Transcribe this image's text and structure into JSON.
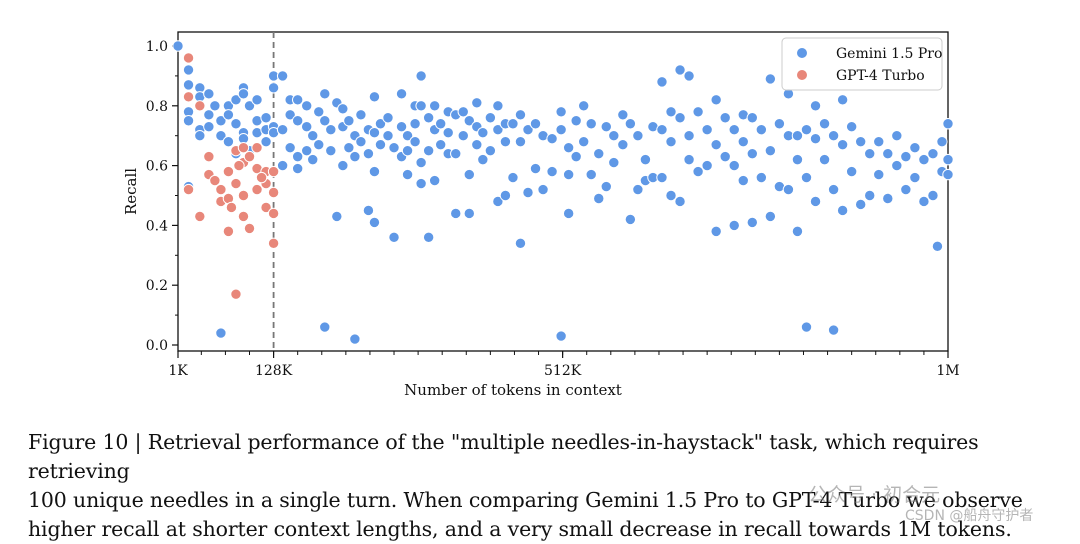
{
  "chart_data": {
    "type": "scatter",
    "title": "",
    "xlabel": "Number of tokens in context",
    "ylabel": "Recall",
    "xlim": [
      1,
      1024
    ],
    "ylim": [
      0,
      1.0
    ],
    "x_units": "K tokens",
    "x_ticks": [
      {
        "value": 1,
        "label": "1K"
      },
      {
        "value": 128,
        "label": "128K"
      },
      {
        "value": 512,
        "label": "512K"
      },
      {
        "value": 1024,
        "label": "1M"
      }
    ],
    "y_ticks": [
      {
        "value": 0.0,
        "label": "0.0"
      },
      {
        "value": 0.2,
        "label": "0.2"
      },
      {
        "value": 0.4,
        "label": "0.4"
      },
      {
        "value": 0.6,
        "label": "0.6"
      },
      {
        "value": 0.8,
        "label": "0.8"
      },
      {
        "value": 1.0,
        "label": "1.0"
      }
    ],
    "vline_x": 128,
    "legend_position": "top-right",
    "grid": false,
    "series": [
      {
        "name": "Gemini 1.5 Pro",
        "color": "#5f98e6",
        "points": [
          [
            1,
            1.0
          ],
          [
            15,
            0.92
          ],
          [
            15,
            0.87
          ],
          [
            15,
            0.78
          ],
          [
            15,
            0.75
          ],
          [
            15,
            0.53
          ],
          [
            30,
            0.86
          ],
          [
            30,
            0.83
          ],
          [
            30,
            0.72
          ],
          [
            30,
            0.7
          ],
          [
            42,
            0.84
          ],
          [
            42,
            0.77
          ],
          [
            42,
            0.73
          ],
          [
            50,
            0.8
          ],
          [
            58,
            0.75
          ],
          [
            58,
            0.7
          ],
          [
            58,
            0.04
          ],
          [
            68,
            0.8
          ],
          [
            68,
            0.77
          ],
          [
            68,
            0.68
          ],
          [
            78,
            0.82
          ],
          [
            78,
            0.74
          ],
          [
            78,
            0.64
          ],
          [
            88,
            0.86
          ],
          [
            88,
            0.84
          ],
          [
            88,
            0.71
          ],
          [
            88,
            0.69
          ],
          [
            96,
            0.8
          ],
          [
            96,
            0.65
          ],
          [
            106,
            0.82
          ],
          [
            106,
            0.75
          ],
          [
            106,
            0.71
          ],
          [
            118,
            0.76
          ],
          [
            118,
            0.72
          ],
          [
            118,
            0.68
          ],
          [
            128,
            0.9
          ],
          [
            128,
            0.86
          ],
          [
            128,
            0.73
          ],
          [
            128,
            0.71
          ],
          [
            140,
            0.9
          ],
          [
            140,
            0.72
          ],
          [
            140,
            0.6
          ],
          [
            150,
            0.82
          ],
          [
            150,
            0.77
          ],
          [
            150,
            0.66
          ],
          [
            160,
            0.82
          ],
          [
            160,
            0.75
          ],
          [
            160,
            0.63
          ],
          [
            160,
            0.59
          ],
          [
            172,
            0.8
          ],
          [
            172,
            0.73
          ],
          [
            172,
            0.65
          ],
          [
            180,
            0.7
          ],
          [
            180,
            0.62
          ],
          [
            188,
            0.78
          ],
          [
            188,
            0.67
          ],
          [
            196,
            0.84
          ],
          [
            196,
            0.75
          ],
          [
            196,
            0.06
          ],
          [
            204,
            0.72
          ],
          [
            204,
            0.65
          ],
          [
            212,
            0.81
          ],
          [
            212,
            0.43
          ],
          [
            220,
            0.79
          ],
          [
            220,
            0.73
          ],
          [
            220,
            0.6
          ],
          [
            228,
            0.75
          ],
          [
            228,
            0.66
          ],
          [
            236,
            0.7
          ],
          [
            236,
            0.63
          ],
          [
            236,
            0.02
          ],
          [
            244,
            0.77
          ],
          [
            244,
            0.68
          ],
          [
            254,
            0.72
          ],
          [
            254,
            0.64
          ],
          [
            254,
            0.45
          ],
          [
            262,
            0.83
          ],
          [
            262,
            0.71
          ],
          [
            262,
            0.58
          ],
          [
            262,
            0.41
          ],
          [
            270,
            0.74
          ],
          [
            270,
            0.67
          ],
          [
            280,
            0.76
          ],
          [
            280,
            0.7
          ],
          [
            288,
            0.66
          ],
          [
            288,
            0.36
          ],
          [
            298,
            0.84
          ],
          [
            298,
            0.73
          ],
          [
            298,
            0.63
          ],
          [
            306,
            0.7
          ],
          [
            306,
            0.65
          ],
          [
            306,
            0.57
          ],
          [
            316,
            0.8
          ],
          [
            316,
            0.74
          ],
          [
            316,
            0.68
          ],
          [
            324,
            0.9
          ],
          [
            324,
            0.8
          ],
          [
            324,
            0.61
          ],
          [
            324,
            0.54
          ],
          [
            334,
            0.76
          ],
          [
            334,
            0.65
          ],
          [
            334,
            0.36
          ],
          [
            342,
            0.8
          ],
          [
            342,
            0.72
          ],
          [
            342,
            0.55
          ],
          [
            350,
            0.74
          ],
          [
            350,
            0.67
          ],
          [
            360,
            0.78
          ],
          [
            360,
            0.71
          ],
          [
            360,
            0.64
          ],
          [
            370,
            0.77
          ],
          [
            370,
            0.64
          ],
          [
            370,
            0.44
          ],
          [
            380,
            0.78
          ],
          [
            380,
            0.7
          ],
          [
            388,
            0.75
          ],
          [
            388,
            0.57
          ],
          [
            388,
            0.44
          ],
          [
            398,
            0.81
          ],
          [
            398,
            0.73
          ],
          [
            398,
            0.67
          ],
          [
            406,
            0.71
          ],
          [
            406,
            0.62
          ],
          [
            416,
            0.76
          ],
          [
            416,
            0.65
          ],
          [
            426,
            0.8
          ],
          [
            426,
            0.72
          ],
          [
            426,
            0.48
          ],
          [
            436,
            0.74
          ],
          [
            436,
            0.68
          ],
          [
            436,
            0.5
          ],
          [
            446,
            0.74
          ],
          [
            446,
            0.56
          ],
          [
            456,
            0.77
          ],
          [
            456,
            0.68
          ],
          [
            456,
            0.34
          ],
          [
            466,
            0.72
          ],
          [
            466,
            0.51
          ],
          [
            476,
            0.74
          ],
          [
            476,
            0.59
          ],
          [
            486,
            0.7
          ],
          [
            486,
            0.52
          ],
          [
            498,
            0.69
          ],
          [
            498,
            0.58
          ],
          [
            510,
            0.78
          ],
          [
            510,
            0.72
          ],
          [
            510,
            0.03
          ],
          [
            520,
            0.66
          ],
          [
            520,
            0.57
          ],
          [
            520,
            0.44
          ],
          [
            530,
            0.75
          ],
          [
            530,
            0.63
          ],
          [
            540,
            0.8
          ],
          [
            540,
            0.68
          ],
          [
            550,
            0.74
          ],
          [
            550,
            0.57
          ],
          [
            560,
            0.64
          ],
          [
            560,
            0.49
          ],
          [
            570,
            0.73
          ],
          [
            570,
            0.53
          ],
          [
            580,
            0.7
          ],
          [
            580,
            0.61
          ],
          [
            592,
            0.77
          ],
          [
            592,
            0.67
          ],
          [
            602,
            0.74
          ],
          [
            602,
            0.42
          ],
          [
            612,
            0.7
          ],
          [
            612,
            0.52
          ],
          [
            622,
            0.62
          ],
          [
            622,
            0.55
          ],
          [
            632,
            0.73
          ],
          [
            632,
            0.56
          ],
          [
            644,
            0.88
          ],
          [
            644,
            0.72
          ],
          [
            644,
            0.56
          ],
          [
            656,
            0.78
          ],
          [
            656,
            0.68
          ],
          [
            656,
            0.5
          ],
          [
            668,
            0.92
          ],
          [
            668,
            0.76
          ],
          [
            668,
            0.48
          ],
          [
            680,
            0.9
          ],
          [
            680,
            0.7
          ],
          [
            680,
            0.62
          ],
          [
            692,
            0.78
          ],
          [
            692,
            0.58
          ],
          [
            704,
            0.72
          ],
          [
            704,
            0.6
          ],
          [
            716,
            0.82
          ],
          [
            716,
            0.67
          ],
          [
            716,
            0.38
          ],
          [
            728,
            0.76
          ],
          [
            728,
            0.63
          ],
          [
            740,
            0.72
          ],
          [
            740,
            0.6
          ],
          [
            740,
            0.4
          ],
          [
            752,
            0.77
          ],
          [
            752,
            0.68
          ],
          [
            752,
            0.55
          ],
          [
            764,
            0.76
          ],
          [
            764,
            0.64
          ],
          [
            764,
            0.41
          ],
          [
            776,
            0.72
          ],
          [
            776,
            0.56
          ],
          [
            788,
            0.89
          ],
          [
            788,
            0.65
          ],
          [
            788,
            0.43
          ],
          [
            800,
            0.74
          ],
          [
            800,
            0.53
          ],
          [
            812,
            0.84
          ],
          [
            812,
            0.7
          ],
          [
            812,
            0.52
          ],
          [
            824,
            0.7
          ],
          [
            824,
            0.62
          ],
          [
            824,
            0.38
          ],
          [
            836,
            0.72
          ],
          [
            836,
            0.56
          ],
          [
            836,
            0.06
          ],
          [
            848,
            0.8
          ],
          [
            848,
            0.69
          ],
          [
            848,
            0.48
          ],
          [
            860,
            0.74
          ],
          [
            860,
            0.62
          ],
          [
            872,
            0.7
          ],
          [
            872,
            0.52
          ],
          [
            872,
            0.05
          ],
          [
            884,
            0.82
          ],
          [
            884,
            0.67
          ],
          [
            884,
            0.45
          ],
          [
            896,
            0.73
          ],
          [
            896,
            0.58
          ],
          [
            908,
            0.68
          ],
          [
            908,
            0.47
          ],
          [
            920,
            0.64
          ],
          [
            920,
            0.5
          ],
          [
            932,
            0.68
          ],
          [
            932,
            0.57
          ],
          [
            944,
            0.64
          ],
          [
            944,
            0.49
          ],
          [
            956,
            0.7
          ],
          [
            956,
            0.6
          ],
          [
            968,
            0.63
          ],
          [
            968,
            0.52
          ],
          [
            980,
            0.66
          ],
          [
            980,
            0.56
          ],
          [
            992,
            0.62
          ],
          [
            992,
            0.48
          ],
          [
            1004,
            0.64
          ],
          [
            1004,
            0.5
          ],
          [
            1010,
            0.33
          ],
          [
            1016,
            0.68
          ],
          [
            1016,
            0.58
          ],
          [
            1024,
            0.74
          ],
          [
            1024,
            0.62
          ],
          [
            1024,
            0.57
          ]
        ]
      },
      {
        "name": "GPT-4 Turbo",
        "color": "#e8877a",
        "points": [
          [
            15,
            0.96
          ],
          [
            15,
            0.83
          ],
          [
            15,
            0.52
          ],
          [
            30,
            0.8
          ],
          [
            30,
            0.43
          ],
          [
            42,
            0.63
          ],
          [
            42,
            0.57
          ],
          [
            50,
            0.55
          ],
          [
            58,
            0.52
          ],
          [
            58,
            0.48
          ],
          [
            68,
            0.58
          ],
          [
            68,
            0.49
          ],
          [
            68,
            0.38
          ],
          [
            78,
            0.65
          ],
          [
            78,
            0.54
          ],
          [
            78,
            0.17
          ],
          [
            88,
            0.66
          ],
          [
            88,
            0.61
          ],
          [
            88,
            0.5
          ],
          [
            88,
            0.43
          ],
          [
            96,
            0.63
          ],
          [
            96,
            0.39
          ],
          [
            106,
            0.66
          ],
          [
            106,
            0.59
          ],
          [
            106,
            0.52
          ],
          [
            118,
            0.58
          ],
          [
            118,
            0.54
          ],
          [
            118,
            0.46
          ],
          [
            128,
            0.58
          ],
          [
            128,
            0.51
          ],
          [
            128,
            0.44
          ],
          [
            128,
            0.34
          ],
          [
            112,
            0.56
          ],
          [
            82,
            0.6
          ],
          [
            72,
            0.46
          ]
        ]
      }
    ]
  },
  "caption": {
    "lines": [
      "Figure 10 | Retrieval performance of the \"multiple needles-in-haystack\" task, which requires retrieving",
      "100 unique needles in a single turn. When comparing Gemini 1.5 Pro to GPT-4 Turbo we observe",
      "higher recall at shorter context lengths, and a very small decrease in recall towards 1M tokens."
    ]
  },
  "watermark": {
    "text1": "公众号 · 初合元",
    "text2": "CSDN @船舟守护者"
  }
}
